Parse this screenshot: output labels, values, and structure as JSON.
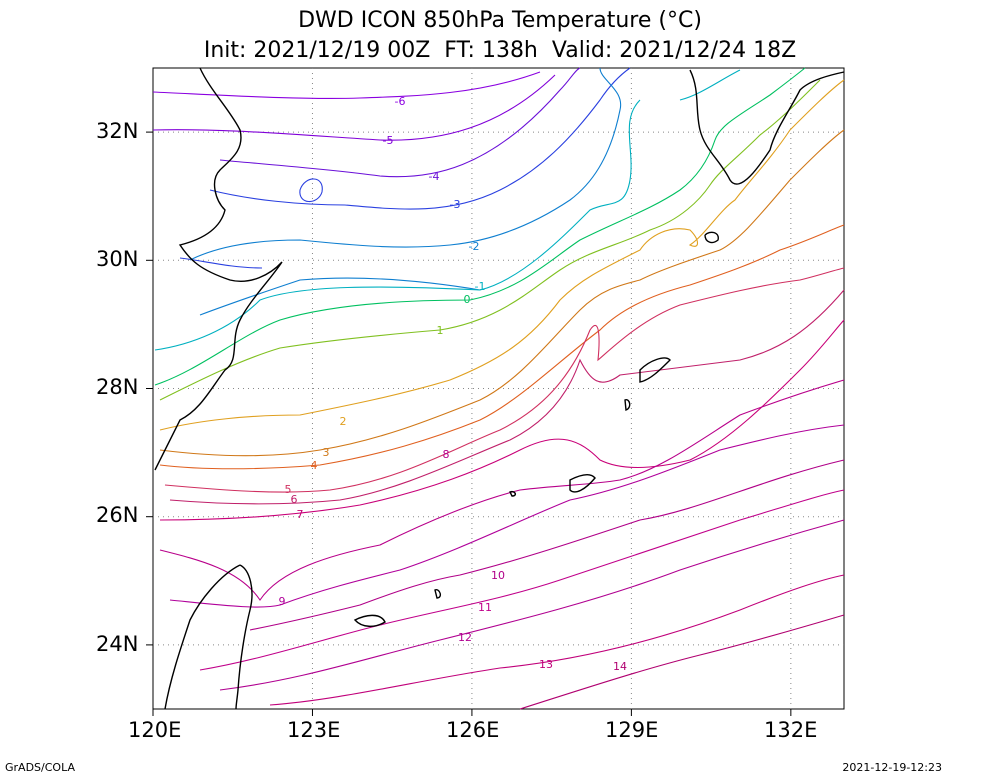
{
  "title_line1": "DWD ICON 850hPa Temperature (°C)",
  "title_line2": "Init: 2021/12/19 00Z  FT: 138h  Valid: 2021/12/24 18Z",
  "footer_left": "GrADS/COLA",
  "footer_right": "2021-12-19-12:23",
  "map": {
    "lon_range": [
      120,
      133
    ],
    "lat_range": [
      23,
      33
    ],
    "lon_ticks": [
      "120E",
      "123E",
      "126E",
      "129E",
      "132E"
    ],
    "lat_ticks": [
      "24N",
      "26N",
      "28N",
      "30N",
      "32N"
    ],
    "gridlines": "dotted",
    "contour_labels": [
      "-6",
      "-5",
      "-4",
      "-3",
      "-2",
      "-1",
      "0",
      "1",
      "2",
      "3",
      "4",
      "5",
      "6",
      "7",
      "8",
      "9",
      "10",
      "11",
      "12",
      "13",
      "14"
    ]
  },
  "colors": {
    "coast": "#000000",
    "cold": "#7a00d8",
    "cool": "#2850e0",
    "mild": "#00c8a0",
    "warm": "#e08a20",
    "hot": "#c8007a"
  }
}
